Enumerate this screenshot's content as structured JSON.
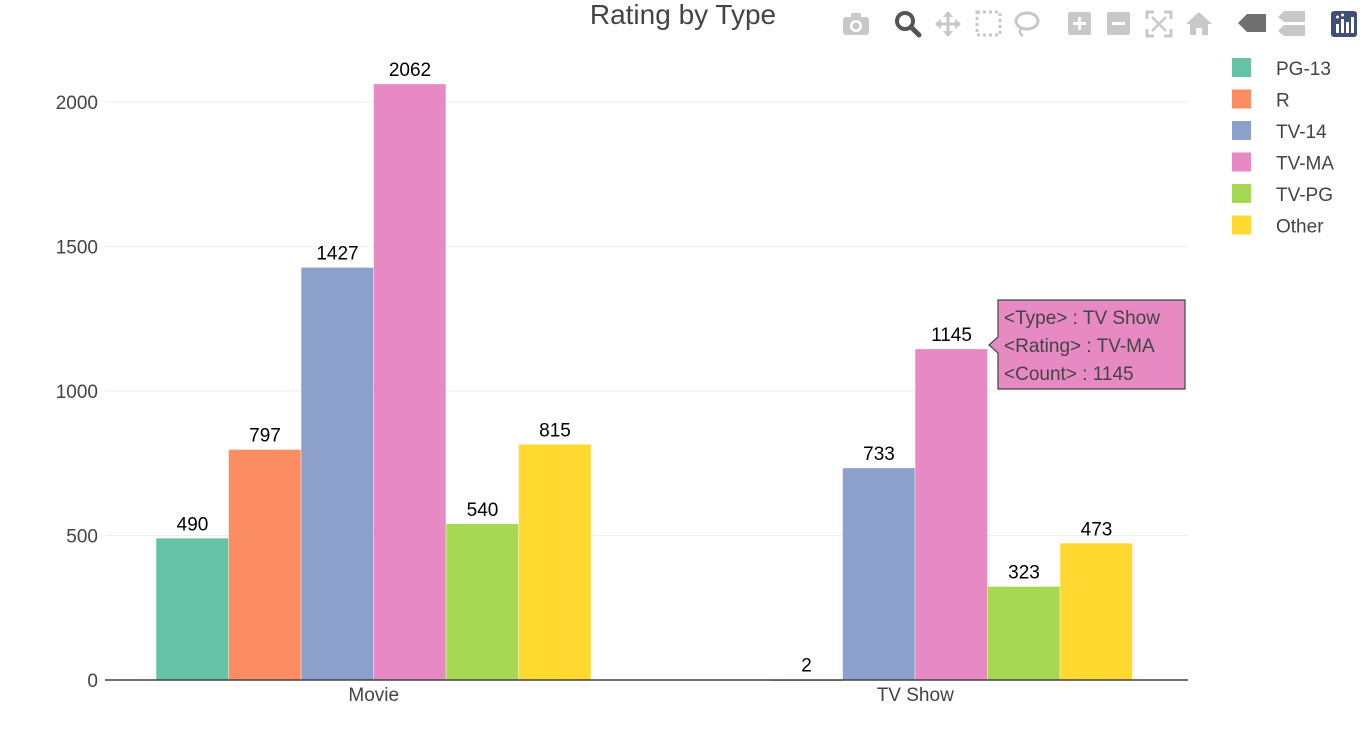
{
  "chart_data": {
    "type": "bar",
    "title": "Rating by Type",
    "xlabel": "",
    "ylabel": "",
    "categories": [
      "Movie",
      "TV Show"
    ],
    "ylim": [
      0,
      2180
    ],
    "yticks": [
      0,
      500,
      1000,
      1500,
      2000
    ],
    "grid": true,
    "legend_position": "top-right",
    "series": [
      {
        "name": "PG-13",
        "color": "#66c2a5",
        "values": [
          490,
          null
        ]
      },
      {
        "name": "R",
        "color": "#fc8d62",
        "values": [
          797,
          2
        ]
      },
      {
        "name": "TV-14",
        "color": "#8da0cb",
        "values": [
          1427,
          733
        ]
      },
      {
        "name": "TV-MA",
        "color": "#e78ac3",
        "values": [
          2062,
          1145
        ]
      },
      {
        "name": "TV-PG",
        "color": "#a6d854",
        "values": [
          540,
          323
        ]
      },
      {
        "name": "Other",
        "color": "#ffd92f",
        "values": [
          815,
          473
        ]
      }
    ]
  },
  "tooltip": {
    "lines": [
      "<Type> : TV Show",
      "<Rating> : TV-MA",
      "<Count> : 1145"
    ],
    "background": "#e78ac3"
  },
  "modebar": {
    "icons": [
      "camera-icon",
      "zoom-icon",
      "pan-icon",
      "box-select-icon",
      "lasso-select-icon",
      "zoom-in-icon",
      "zoom-out-icon",
      "autoscale-icon",
      "reset-axes-icon",
      "hover-closest-icon",
      "hover-compare-icon",
      "plotly-logo-icon"
    ]
  }
}
